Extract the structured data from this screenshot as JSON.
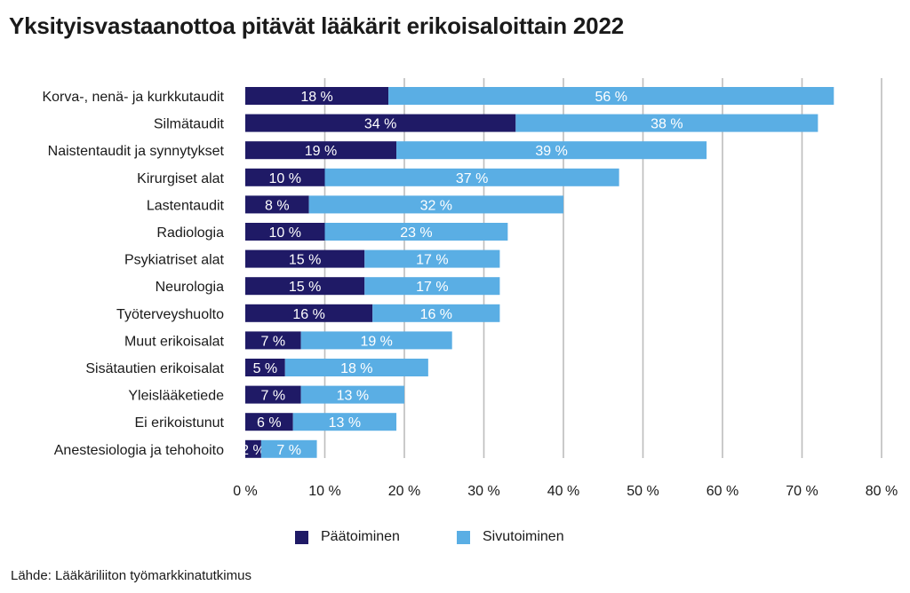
{
  "title": "Yksityisvastaanottoa pitävät lääkärit erikoisaloittain 2022",
  "source": "Lähde: Lääkäriliiton työmarkkinatutkimus",
  "colors": {
    "paatoiminen": "#1f1a66",
    "sivutoiminen": "#5aaee4",
    "grid": "#bdbdbd",
    "text": "#1a1a1a"
  },
  "chart_data": {
    "type": "bar",
    "orientation": "horizontal",
    "stacked": true,
    "categories": [
      "Korva-, nenä- ja kurkkutaudit",
      "Silmätaudit",
      "Naistentaudit ja synnytykset",
      "Kirurgiset alat",
      "Lastentaudit",
      "Radiologia",
      "Psykiatriset alat",
      "Neurologia",
      "Työterveyshuolto",
      "Muut erikoisalat",
      "Sisätautien erikoisalat",
      "Yleislääketiede",
      "Ei erikoistunut",
      "Anestesiologia ja tehohoito"
    ],
    "series": [
      {
        "name": "Päätoiminen",
        "values": [
          18,
          34,
          19,
          10,
          8,
          10,
          15,
          15,
          16,
          7,
          5,
          7,
          6,
          2
        ],
        "labels": [
          "18 %",
          "34 %",
          "19 %",
          "10 %",
          "8 %",
          "10 %",
          "15 %",
          "15 %",
          "16 %",
          "7 %",
          "5 %",
          "7 %",
          "6 %",
          "2 %"
        ]
      },
      {
        "name": "Sivutoiminen",
        "values": [
          56,
          38,
          39,
          37,
          32,
          23,
          17,
          17,
          16,
          19,
          18,
          13,
          13,
          7
        ],
        "labels": [
          "56 %",
          "38 %",
          "39 %",
          "37 %",
          "32 %",
          "23 %",
          "17 %",
          "17 %",
          "16 %",
          "19 %",
          "18 %",
          "13 %",
          "13 %",
          "7 %"
        ]
      }
    ],
    "xlim": [
      0,
      80
    ],
    "xticks": [
      "0 %",
      "10 %",
      "20 %",
      "30 %",
      "40 %",
      "50 %",
      "60 %",
      "70 %",
      "80 %"
    ],
    "grid": true,
    "legend_position": "bottom-center"
  }
}
